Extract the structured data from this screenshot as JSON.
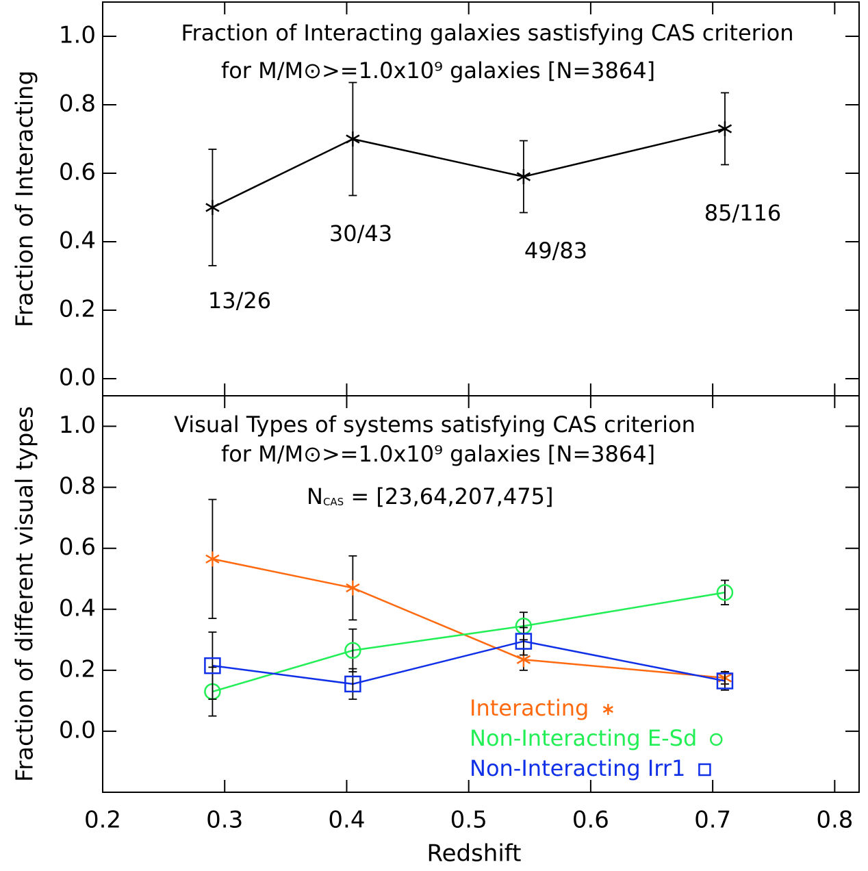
{
  "chart_data": [
    {
      "type": "line",
      "title": "Fraction of Interacting galaxies sastisfying CAS criterion",
      "subtitle": "for M/M⊙>=1.0x10⁹  galaxies [N=3864]",
      "ylabel": "Fraction of Interacting",
      "xlim": [
        0.2,
        0.82
      ],
      "ylim": [
        -0.05,
        1.1
      ],
      "xticks": [
        0.2,
        0.3,
        0.4,
        0.5,
        0.6,
        0.7,
        0.8
      ],
      "yticks": [
        {
          "value": 0,
          "label": "0.0"
        },
        0.2,
        0.4,
        0.6,
        0.8,
        {
          "value": 1,
          "label": "1.0"
        }
      ],
      "series": [
        {
          "color": "#000000",
          "marker": "asterisk",
          "x": [
            0.29,
            0.405,
            0.545,
            0.71
          ],
          "values": [
            0.5,
            0.7,
            0.59,
            0.73
          ],
          "errors": [
            0.17,
            0.165,
            0.105,
            0.105
          ]
        }
      ],
      "annotations": [
        "13/26",
        "30/43",
        "49/83",
        "85/116"
      ]
    },
    {
      "type": "line",
      "title": "Visual Types of systems satisfying CAS criterion",
      "subtitle": "for M/M⊙>=1.0x10⁹  galaxies [N=3864]",
      "note": {
        "symbol": "N",
        "subscript": "CAS",
        "text": " = [23,64,207,475]"
      },
      "ylabel": "Fraction of different visual types",
      "xlabel": "Redshift",
      "xlim": [
        0.2,
        0.82
      ],
      "ylim": [
        -0.2,
        1.1
      ],
      "xticks": [
        0.2,
        0.3,
        0.4,
        0.5,
        0.6,
        0.7,
        0.8
      ],
      "yticks": [
        {
          "value": 0,
          "label": "0.0"
        },
        0.2,
        0.4,
        0.6,
        0.8,
        {
          "value": 1,
          "label": "1.0"
        }
      ],
      "legend": "lower right",
      "series": [
        {
          "name": "Interacting",
          "color": "#ff6a10",
          "marker": "asterisk",
          "x": [
            0.29,
            0.405,
            0.545,
            0.71
          ],
          "values": [
            0.565,
            0.47,
            0.235,
            0.175
          ],
          "errors": [
            0.195,
            0.105,
            0.035,
            0.02
          ]
        },
        {
          "name": "Non-Interacting E-Sd",
          "color": "#22ee55",
          "marker": "circle",
          "x": [
            0.29,
            0.405,
            0.545,
            0.71
          ],
          "values": [
            0.13,
            0.265,
            0.345,
            0.455
          ],
          "errors": [
            0.08,
            0.07,
            0.045,
            0.04
          ]
        },
        {
          "name": "Non-Interacting Irr1",
          "color": "#1030e8",
          "marker": "square",
          "x": [
            0.29,
            0.405,
            0.545,
            0.71
          ],
          "values": [
            0.215,
            0.155,
            0.295,
            0.165
          ],
          "errors": [
            0.11,
            0.05,
            0.045,
            0.03
          ]
        }
      ]
    }
  ]
}
